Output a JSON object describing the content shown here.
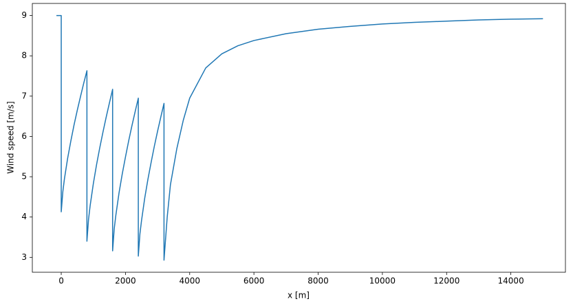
{
  "chart_data": {
    "type": "line",
    "xlabel": "x [m]",
    "ylabel": "Wind speed [m/s]",
    "x": [
      -150,
      0,
      0,
      50,
      100,
      200,
      300,
      400,
      500,
      600,
      700,
      800,
      800,
      850,
      900,
      1000,
      1100,
      1200,
      1300,
      1400,
      1500,
      1600,
      1600,
      1650,
      1700,
      1800,
      1900,
      2000,
      2100,
      2200,
      2300,
      2400,
      2400,
      2450,
      2500,
      2600,
      2700,
      2800,
      2900,
      3000,
      3100,
      3200,
      3200,
      3300,
      3400,
      3600,
      3800,
      4000,
      4500,
      5000,
      5500,
      6000,
      7000,
      8000,
      9000,
      10000,
      11000,
      12000,
      13000,
      14000,
      15000
    ],
    "series": [
      {
        "color": "#1f77b4",
        "values": [
          9,
          9,
          4.13,
          4.63,
          4.95,
          5.46,
          5.89,
          6.29,
          6.65,
          6.99,
          7.32,
          7.63,
          3.4,
          3.94,
          4.28,
          4.83,
          5.3,
          5.72,
          6.11,
          6.48,
          6.83,
          7.17,
          3.16,
          3.71,
          4.04,
          4.6,
          5.07,
          5.49,
          5.89,
          6.26,
          6.61,
          6.95,
          3.03,
          3.58,
          3.91,
          4.47,
          4.94,
          5.36,
          5.76,
          6.13,
          6.48,
          6.82,
          2.93,
          4.0,
          4.8,
          5.7,
          6.4,
          6.95,
          7.7,
          8.05,
          8.25,
          8.38,
          8.55,
          8.66,
          8.73,
          8.79,
          8.83,
          8.86,
          8.89,
          8.91,
          8.92
        ]
      }
    ],
    "xlim": [
      -900,
      15700
    ],
    "ylim": [
      2.63,
      9.3
    ],
    "xticks": [
      0,
      2000,
      4000,
      6000,
      8000,
      10000,
      12000,
      14000
    ],
    "yticks": [
      3,
      4,
      5,
      6,
      7,
      8,
      9
    ],
    "grid": false
  }
}
